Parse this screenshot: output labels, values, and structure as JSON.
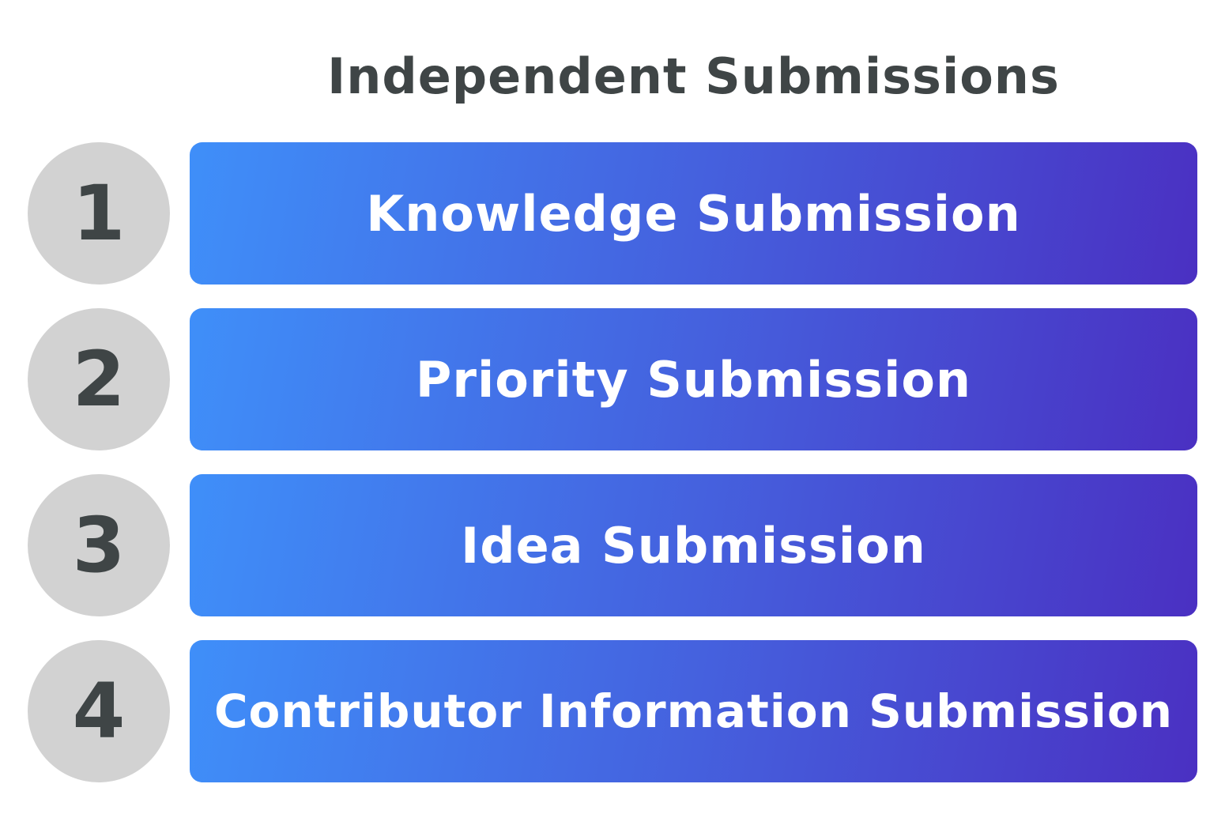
{
  "title": "Independent Submissions",
  "items": [
    {
      "number": "1",
      "label": "Knowledge Submission"
    },
    {
      "number": "2",
      "label": "Priority Submission"
    },
    {
      "number": "3",
      "label": "Idea Submission"
    },
    {
      "number": "4",
      "label": "Contributor Information Submission"
    }
  ],
  "colors": {
    "title_text": "#3f4546",
    "circle_fill": "#d2d2d2",
    "bar_gradient_start": "#3f8ff9",
    "bar_gradient_end": "#4a30c2",
    "bar_text": "#ffffff"
  }
}
